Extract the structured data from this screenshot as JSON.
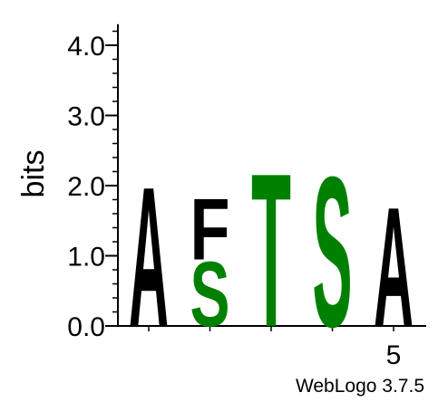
{
  "chart_data": {
    "type": "sequence-logo",
    "ylabel": "bits",
    "ylim": [
      0,
      4.3
    ],
    "y_ticks": [
      {
        "value": 0,
        "label": "0.0"
      },
      {
        "value": 1,
        "label": "1.0"
      },
      {
        "value": 2,
        "label": "2.0"
      },
      {
        "value": 3,
        "label": "3.0"
      },
      {
        "value": 4,
        "label": "4.0"
      }
    ],
    "x_positions": [
      1,
      2,
      3,
      4,
      5
    ],
    "x_tick_labels": [
      {
        "position": 5,
        "label": "5"
      }
    ],
    "stacks": [
      {
        "position": 1,
        "letters": [
          {
            "char": "A",
            "height": 2.05,
            "color": "#000000"
          }
        ]
      },
      {
        "position": 2,
        "letters": [
          {
            "char": "S",
            "height": 0.95,
            "color": "#008000"
          },
          {
            "char": "F",
            "height": 0.9,
            "color": "#000000"
          }
        ]
      },
      {
        "position": 3,
        "letters": [
          {
            "char": "T",
            "height": 2.25,
            "color": "#008000"
          }
        ]
      },
      {
        "position": 4,
        "letters": [
          {
            "char": "S",
            "height": 2.2,
            "color": "#008000"
          }
        ]
      },
      {
        "position": 5,
        "letters": [
          {
            "char": "A",
            "height": 1.75,
            "color": "#000000"
          }
        ]
      }
    ],
    "grid": false
  },
  "footer": {
    "credit": "WebLogo 3.7.5"
  }
}
